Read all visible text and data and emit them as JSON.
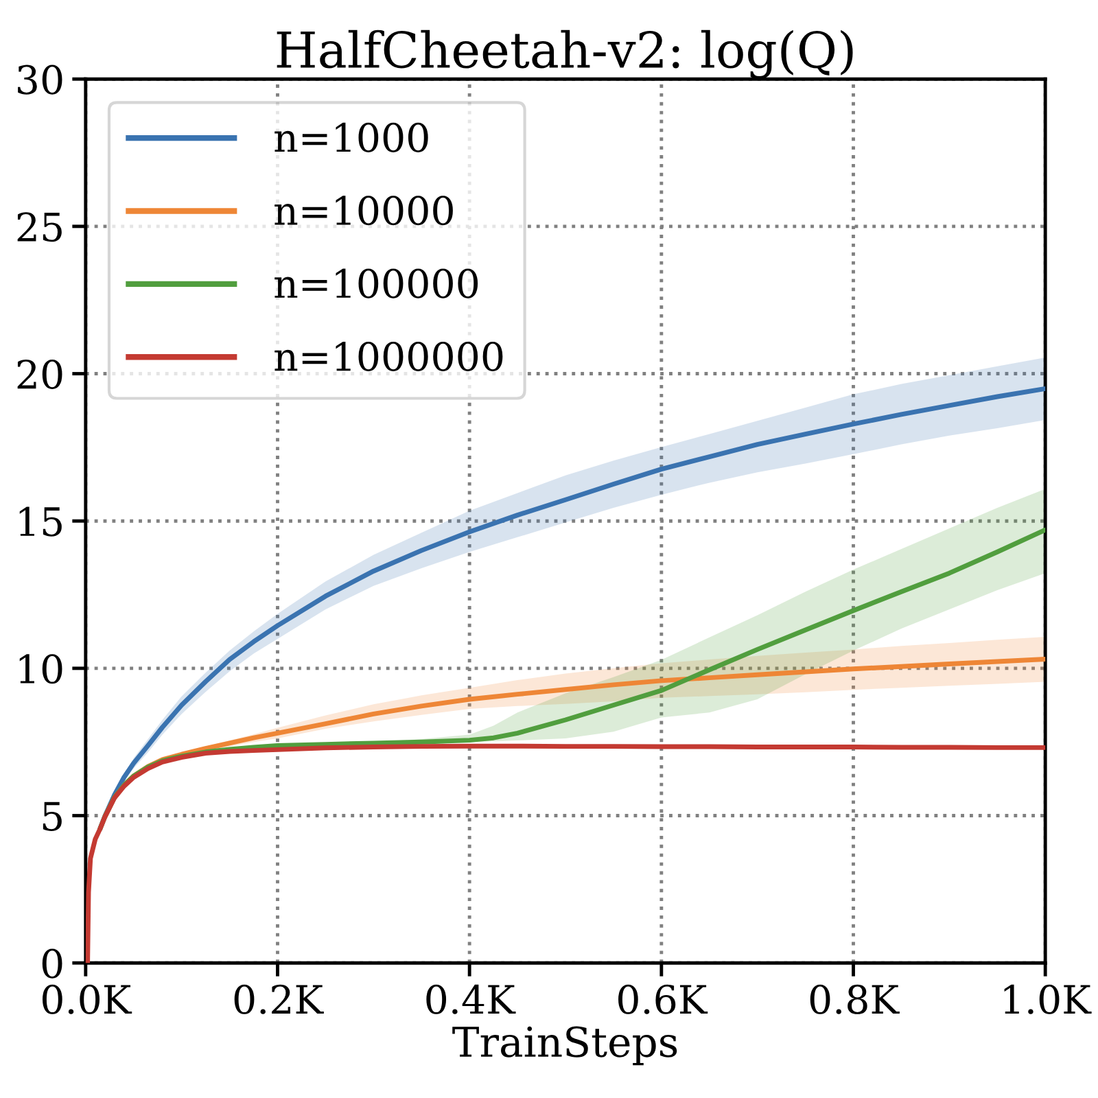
{
  "chart_data": {
    "type": "line",
    "title": "HalfCheetah-v2: log(Q)",
    "xlabel": "TrainSteps",
    "xlim": [
      0,
      1000
    ],
    "xticks": [
      {
        "value": 0,
        "label": "0.0K"
      },
      {
        "value": 200,
        "label": "0.2K"
      },
      {
        "value": 400,
        "label": "0.4K"
      },
      {
        "value": 600,
        "label": "0.6K"
      },
      {
        "value": 800,
        "label": "0.8K"
      },
      {
        "value": 1000,
        "label": "1.0K"
      }
    ],
    "ylim": [
      0,
      30
    ],
    "yticks": [
      0,
      5,
      10,
      15,
      20,
      25,
      30
    ],
    "grid": true,
    "legend": "top left",
    "line_style": "solid",
    "series": [
      {
        "name": "n=1000",
        "color": "#3a73b0",
        "x": [
          15,
          20,
          30,
          40,
          50,
          65,
          80,
          100,
          125,
          150,
          175,
          200,
          250,
          300,
          350,
          400,
          450,
          500,
          550,
          600,
          650,
          700,
          750,
          800,
          850,
          900,
          950,
          1000
        ],
        "values": [
          4.55,
          4.98,
          5.7,
          6.3,
          6.78,
          7.38,
          8.0,
          8.75,
          9.55,
          10.3,
          10.9,
          11.45,
          12.45,
          13.3,
          14.0,
          14.63,
          15.2,
          15.72,
          16.25,
          16.76,
          17.18,
          17.6,
          17.95,
          18.29,
          18.62,
          18.92,
          19.22,
          19.49
        ],
        "lower": [
          4.55,
          4.98,
          5.65,
          6.2,
          6.6,
          7.15,
          7.75,
          8.45,
          9.2,
          9.9,
          10.5,
          11.0,
          12.0,
          12.8,
          13.4,
          13.95,
          14.45,
          14.95,
          15.45,
          15.89,
          16.3,
          16.65,
          16.95,
          17.27,
          17.6,
          17.9,
          18.15,
          18.43
        ],
        "upper": [
          4.55,
          4.98,
          5.75,
          6.4,
          6.95,
          7.6,
          8.25,
          9.05,
          9.85,
          10.6,
          11.25,
          11.85,
          12.95,
          13.85,
          14.6,
          15.35,
          15.95,
          16.55,
          17.05,
          17.51,
          17.95,
          18.4,
          18.85,
          19.3,
          19.65,
          19.95,
          20.25,
          20.55
        ]
      },
      {
        "name": "n=10000",
        "color": "#ee8636",
        "x": [
          20,
          30,
          40,
          50,
          65,
          80,
          100,
          125,
          150,
          175,
          200,
          250,
          300,
          350,
          400,
          450,
          500,
          550,
          600,
          650,
          700,
          750,
          800,
          850,
          900,
          950,
          1000
        ],
        "values": [
          4.96,
          5.62,
          6.03,
          6.35,
          6.67,
          6.9,
          7.08,
          7.28,
          7.46,
          7.64,
          7.8,
          8.12,
          8.45,
          8.72,
          8.95,
          9.12,
          9.28,
          9.44,
          9.58,
          9.68,
          9.78,
          9.88,
          9.98,
          10.06,
          10.15,
          10.23,
          10.31
        ],
        "lower": [
          4.96,
          5.62,
          6.03,
          6.33,
          6.63,
          6.85,
          7.02,
          7.2,
          7.35,
          7.5,
          7.62,
          7.95,
          8.2,
          8.42,
          8.62,
          8.72,
          8.79,
          8.88,
          9.0,
          9.06,
          9.12,
          9.19,
          9.27,
          9.34,
          9.41,
          9.47,
          9.54
        ],
        "upper": [
          4.96,
          5.62,
          6.03,
          6.37,
          6.71,
          6.95,
          7.13,
          7.35,
          7.55,
          7.76,
          7.98,
          8.4,
          8.78,
          9.08,
          9.34,
          9.6,
          9.82,
          10.0,
          10.17,
          10.3,
          10.42,
          10.53,
          10.64,
          10.76,
          10.86,
          10.97,
          11.07
        ]
      },
      {
        "name": "n=100000",
        "color": "#519e3e",
        "x": [
          15,
          20,
          30,
          40,
          50,
          65,
          80,
          100,
          125,
          150,
          175,
          200,
          250,
          300,
          350,
          400,
          425,
          450,
          500,
          550,
          600,
          650,
          700,
          750,
          800,
          850,
          900,
          950,
          1000
        ],
        "values": [
          4.55,
          4.96,
          5.62,
          6.03,
          6.34,
          6.65,
          6.86,
          7.02,
          7.16,
          7.25,
          7.32,
          7.38,
          7.42,
          7.46,
          7.5,
          7.56,
          7.64,
          7.8,
          8.25,
          8.75,
          9.25,
          9.95,
          10.64,
          11.3,
          11.96,
          12.6,
          13.23,
          13.95,
          14.7
        ],
        "lower": [
          4.55,
          4.96,
          5.62,
          6.03,
          6.33,
          6.63,
          6.84,
          7.0,
          7.14,
          7.23,
          7.3,
          7.36,
          7.4,
          7.44,
          7.45,
          7.5,
          7.52,
          7.55,
          7.62,
          7.85,
          8.33,
          8.5,
          8.95,
          9.8,
          10.6,
          11.35,
          12.0,
          12.65,
          13.23
        ],
        "upper": [
          4.55,
          4.96,
          5.62,
          6.03,
          6.35,
          6.67,
          6.88,
          7.04,
          7.18,
          7.27,
          7.34,
          7.4,
          7.45,
          7.5,
          7.6,
          7.75,
          8.05,
          8.5,
          9.15,
          9.7,
          10.29,
          11.05,
          11.8,
          12.6,
          13.35,
          14.05,
          14.75,
          15.45,
          16.09
        ]
      },
      {
        "name": "n=1000000",
        "color": "#c43a32",
        "x": [
          2,
          3,
          5,
          10,
          15,
          20,
          30,
          40,
          50,
          65,
          80,
          100,
          125,
          150,
          175,
          200,
          250,
          300,
          350,
          400,
          450,
          500,
          550,
          600,
          650,
          700,
          750,
          800,
          850,
          900,
          950,
          1000
        ],
        "values": [
          0,
          2.4,
          3.55,
          4.2,
          4.55,
          4.95,
          5.6,
          6.0,
          6.3,
          6.6,
          6.82,
          6.98,
          7.12,
          7.18,
          7.21,
          7.24,
          7.3,
          7.33,
          7.35,
          7.36,
          7.36,
          7.35,
          7.35,
          7.34,
          7.34,
          7.33,
          7.33,
          7.33,
          7.32,
          7.32,
          7.31,
          7.31
        ]
      }
    ]
  }
}
